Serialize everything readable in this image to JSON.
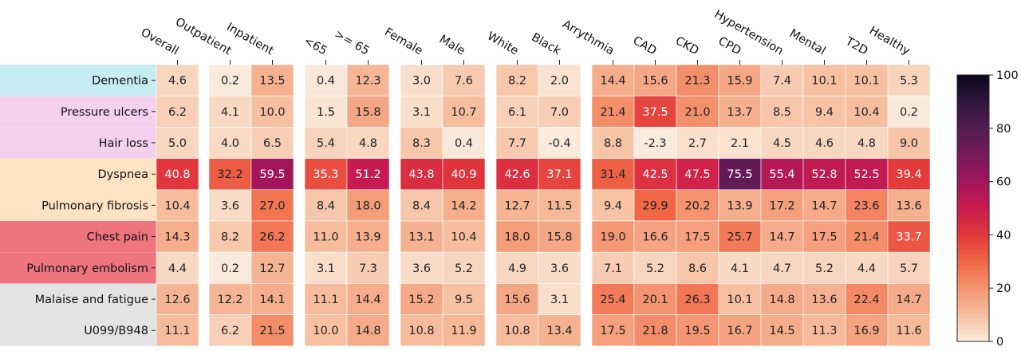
{
  "chart_data": {
    "type": "heatmap",
    "columns": [
      "Overall",
      "Outpatient",
      "Inpatient",
      "<65",
      ">= 65",
      "Female",
      "Male",
      "White",
      "Black",
      "Arrythmia",
      "CAD",
      "CKD",
      "CPD",
      "Hypertension",
      "Mental",
      "T2D",
      "Healthy"
    ],
    "rows": [
      "Dementia",
      "Pressure ulcers",
      "Hair loss",
      "Dyspnea",
      "Pulmonary fibrosis",
      "Chest pain",
      "Pulmonary embolism",
      "Malaise and fatigue",
      "U099/B948"
    ],
    "row_group_colors": [
      "#c6ecf4",
      "#f4d2ef",
      "#f4d2ef",
      "#fde3c1",
      "#fde3c1",
      "#ee7580",
      "#ee7580",
      "#e4e4e4",
      "#e4e4e4"
    ],
    "values": [
      [
        4.6,
        0.2,
        13.5,
        0.4,
        12.3,
        3.0,
        7.6,
        8.2,
        2.0,
        14.4,
        15.6,
        21.3,
        15.9,
        7.4,
        10.1,
        10.1,
        5.3
      ],
      [
        6.2,
        4.1,
        10.0,
        1.5,
        15.8,
        3.1,
        10.7,
        6.1,
        7.0,
        21.4,
        37.5,
        21.0,
        13.7,
        8.5,
        9.4,
        10.4,
        0.2
      ],
      [
        5.0,
        4.0,
        6.5,
        5.4,
        4.8,
        8.3,
        0.4,
        7.7,
        -0.4,
        8.8,
        -2.3,
        2.7,
        2.1,
        4.5,
        4.6,
        4.8,
        9.0
      ],
      [
        40.8,
        32.2,
        59.5,
        35.3,
        51.2,
        43.8,
        40.9,
        42.6,
        37.1,
        31.4,
        42.5,
        47.5,
        75.5,
        55.4,
        52.8,
        52.5,
        39.4
      ],
      [
        10.4,
        3.6,
        27.0,
        8.4,
        18.0,
        8.4,
        14.2,
        12.7,
        11.5,
        9.4,
        29.9,
        20.2,
        13.9,
        17.2,
        14.7,
        23.6,
        13.6
      ],
      [
        14.3,
        8.2,
        26.2,
        11.0,
        13.9,
        13.1,
        10.4,
        18.0,
        15.8,
        19.0,
        16.6,
        17.5,
        25.7,
        14.7,
        17.5,
        21.4,
        33.7
      ],
      [
        4.4,
        0.2,
        12.7,
        3.1,
        7.3,
        3.6,
        5.2,
        4.9,
        3.6,
        7.1,
        5.2,
        8.6,
        4.1,
        4.7,
        5.2,
        4.4,
        5.7
      ],
      [
        12.6,
        12.2,
        14.1,
        11.1,
        14.4,
        15.2,
        9.5,
        15.6,
        3.1,
        25.4,
        20.1,
        26.3,
        10.1,
        14.8,
        13.6,
        22.4,
        14.7
      ],
      [
        11.1,
        6.2,
        21.5,
        10.0,
        14.8,
        10.8,
        11.9,
        10.8,
        13.4,
        17.5,
        21.8,
        19.5,
        16.7,
        14.5,
        11.3,
        16.9,
        11.6
      ]
    ],
    "colorbar": {
      "min": 0,
      "max": 100,
      "ticks": [
        0,
        20,
        40,
        60,
        80,
        100
      ],
      "ticklabels": [
        "0",
        "20",
        "40",
        "60",
        "80",
        "100"
      ]
    },
    "colormap": "rocket_r"
  }
}
